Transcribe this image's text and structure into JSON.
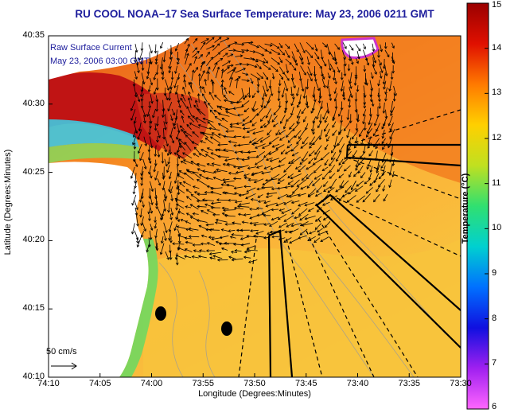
{
  "title": "RU COOL  NOAA–17  Sea Surface Temperature:  May 23, 2006 0211 GMT",
  "legend": {
    "line1": "Raw Surface Current",
    "line2": "May 23, 2006 03:00 GMT"
  },
  "scale_label": "50 cm/s",
  "axes": {
    "ylabel": "Latitude (Degrees:Minutes)",
    "xlabel": "Longitude (Degrees:Minutes)",
    "yticks": [
      "40:35",
      "40:30",
      "40:25",
      "40:20",
      "40:15",
      "40:10"
    ],
    "xticks": [
      "74:10",
      "74:05",
      "74:00",
      "73:55",
      "73:50",
      "73:45",
      "73:40",
      "73:35",
      "73:30"
    ]
  },
  "colorbar": {
    "label": "Temperature (°C)",
    "ticks": [
      "15",
      "14",
      "13",
      "12",
      "11",
      "10",
      "9",
      "8",
      "7",
      "6"
    ],
    "min": 6,
    "max": 15,
    "colors": [
      "#ff66ff",
      "#a020f0",
      "#1010e0",
      "#0070ff",
      "#00d0d0",
      "#30e070",
      "#c0e020",
      "#ffd000",
      "#ff7a00",
      "#e01000",
      "#9a0000"
    ]
  },
  "colors": {
    "title": "#1c1c9c",
    "ocean_warm": "#f08020",
    "ocean_cool": "#ffd060",
    "land": "#ffffff",
    "cold_patch": "#40c0ff",
    "hot_patch": "#c01010"
  }
}
